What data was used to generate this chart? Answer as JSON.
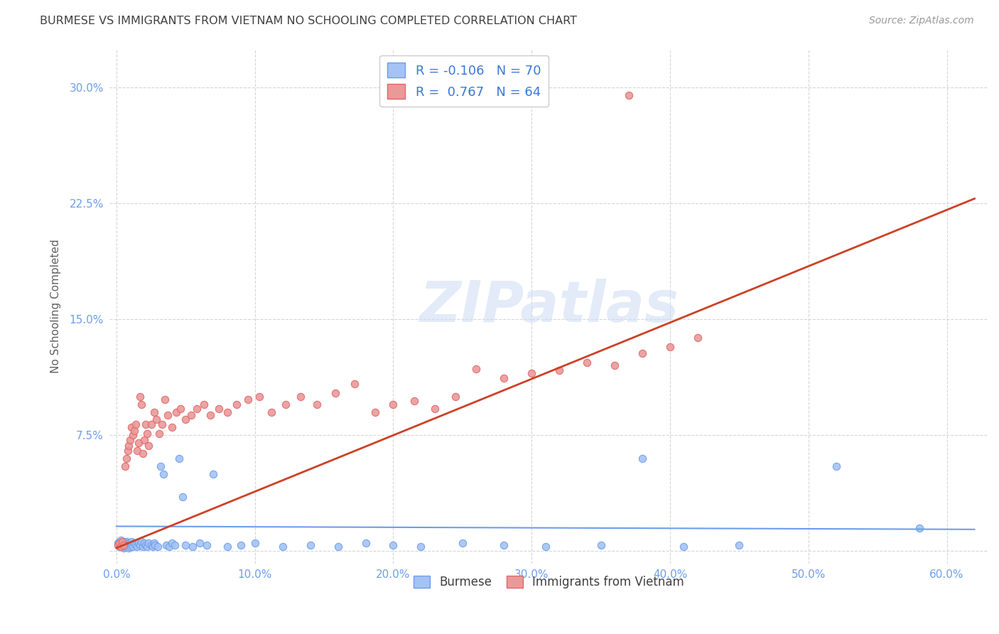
{
  "title": "BURMESE VS IMMIGRANTS FROM VIETNAM NO SCHOOLING COMPLETED CORRELATION CHART",
  "source": "Source: ZipAtlas.com",
  "xlabel_ticks": [
    "0.0%",
    "10.0%",
    "20.0%",
    "30.0%",
    "40.0%",
    "50.0%",
    "60.0%"
  ],
  "xlabel_vals": [
    0.0,
    0.1,
    0.2,
    0.3,
    0.4,
    0.5,
    0.6
  ],
  "ylabel": "No Schooling Completed",
  "ytick_vals": [
    0.0,
    0.075,
    0.15,
    0.225,
    0.3
  ],
  "ytick_labels": [
    "",
    "7.5%",
    "15.0%",
    "22.5%",
    "30.0%"
  ],
  "xlim": [
    -0.005,
    0.63
  ],
  "ylim": [
    -0.008,
    0.325
  ],
  "watermark": "ZIPatlas",
  "color_blue": "#a4c2f4",
  "color_blue_edge": "#6d9eeb",
  "color_pink": "#ea9999",
  "color_pink_edge": "#e06666",
  "color_blue_line": "#6d9eeb",
  "color_pink_line": "#cc4125",
  "color_title": "#404040",
  "color_source": "#999999",
  "color_rn": "#3c78d8",
  "blue_x": [
    0.001,
    0.002,
    0.002,
    0.003,
    0.003,
    0.004,
    0.004,
    0.005,
    0.005,
    0.005,
    0.006,
    0.006,
    0.007,
    0.007,
    0.008,
    0.008,
    0.009,
    0.009,
    0.01,
    0.01,
    0.011,
    0.011,
    0.012,
    0.013,
    0.014,
    0.015,
    0.016,
    0.017,
    0.018,
    0.019,
    0.02,
    0.021,
    0.022,
    0.023,
    0.025,
    0.026,
    0.027,
    0.028,
    0.03,
    0.032,
    0.034,
    0.036,
    0.038,
    0.04,
    0.042,
    0.045,
    0.048,
    0.05,
    0.055,
    0.06,
    0.065,
    0.07,
    0.08,
    0.09,
    0.1,
    0.12,
    0.14,
    0.16,
    0.18,
    0.2,
    0.22,
    0.25,
    0.28,
    0.31,
    0.35,
    0.38,
    0.41,
    0.45,
    0.52,
    0.58
  ],
  "blue_y": [
    0.005,
    0.003,
    0.006,
    0.004,
    0.007,
    0.003,
    0.005,
    0.004,
    0.006,
    0.002,
    0.005,
    0.003,
    0.004,
    0.006,
    0.003,
    0.005,
    0.004,
    0.002,
    0.005,
    0.003,
    0.004,
    0.006,
    0.003,
    0.005,
    0.004,
    0.003,
    0.005,
    0.004,
    0.006,
    0.003,
    0.005,
    0.004,
    0.003,
    0.005,
    0.004,
    0.003,
    0.005,
    0.004,
    0.003,
    0.055,
    0.05,
    0.004,
    0.003,
    0.005,
    0.004,
    0.06,
    0.035,
    0.004,
    0.003,
    0.005,
    0.004,
    0.05,
    0.003,
    0.004,
    0.005,
    0.003,
    0.004,
    0.003,
    0.005,
    0.004,
    0.003,
    0.005,
    0.004,
    0.003,
    0.004,
    0.06,
    0.003,
    0.004,
    0.055,
    0.015
  ],
  "pink_x": [
    0.001,
    0.002,
    0.003,
    0.004,
    0.005,
    0.006,
    0.007,
    0.008,
    0.009,
    0.01,
    0.011,
    0.012,
    0.013,
    0.014,
    0.015,
    0.016,
    0.017,
    0.018,
    0.019,
    0.02,
    0.021,
    0.022,
    0.023,
    0.025,
    0.027,
    0.029,
    0.031,
    0.033,
    0.035,
    0.037,
    0.04,
    0.043,
    0.046,
    0.05,
    0.054,
    0.058,
    0.063,
    0.068,
    0.074,
    0.08,
    0.087,
    0.095,
    0.103,
    0.112,
    0.122,
    0.133,
    0.145,
    0.158,
    0.172,
    0.187,
    0.2,
    0.215,
    0.23,
    0.245,
    0.26,
    0.28,
    0.3,
    0.32,
    0.34,
    0.36,
    0.38,
    0.4,
    0.42,
    0.37
  ],
  "pink_y": [
    0.004,
    0.005,
    0.003,
    0.006,
    0.004,
    0.055,
    0.06,
    0.065,
    0.068,
    0.072,
    0.08,
    0.075,
    0.078,
    0.082,
    0.065,
    0.07,
    0.1,
    0.095,
    0.063,
    0.072,
    0.082,
    0.076,
    0.068,
    0.082,
    0.09,
    0.085,
    0.076,
    0.082,
    0.098,
    0.088,
    0.08,
    0.09,
    0.092,
    0.085,
    0.088,
    0.092,
    0.095,
    0.088,
    0.092,
    0.09,
    0.095,
    0.098,
    0.1,
    0.09,
    0.095,
    0.1,
    0.095,
    0.102,
    0.108,
    0.09,
    0.095,
    0.097,
    0.092,
    0.1,
    0.118,
    0.112,
    0.115,
    0.117,
    0.122,
    0.12,
    0.128,
    0.132,
    0.138,
    0.295
  ],
  "blue_line_x": [
    0.0,
    0.62
  ],
  "blue_line_y": [
    0.016,
    0.014
  ],
  "pink_line_x": [
    0.0,
    0.62
  ],
  "pink_line_y": [
    0.002,
    0.228
  ]
}
